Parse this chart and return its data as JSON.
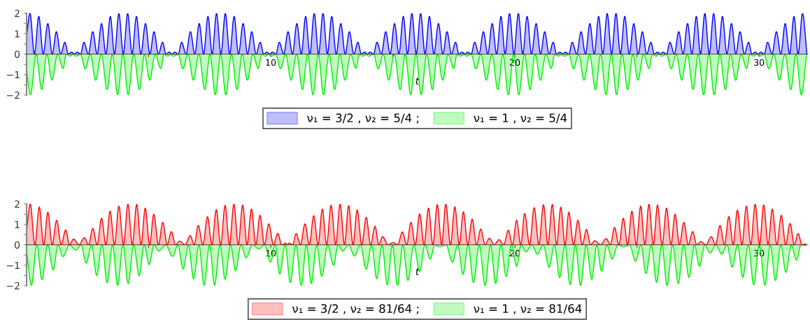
{
  "chart_data": [
    {
      "type": "area",
      "xlabel": "t",
      "xlim": [
        0,
        32
      ],
      "ylim": [
        -2,
        2
      ],
      "legend": "bottom",
      "xticks": [
        {
          "value": 5,
          "label": null
        },
        10,
        {
          "value": 15,
          "label": null
        },
        20,
        {
          "value": 25,
          "label": null
        },
        30
      ],
      "yticks": [
        -2,
        {
          "value": -1.5,
          "label": null
        },
        -1,
        {
          "value": -0.5,
          "label": null
        },
        0,
        {
          "value": 0.5,
          "label": null
        },
        1,
        {
          "value": 1.5,
          "label": null
        },
        2
      ],
      "series": [
        {
          "name": "ν₁ = 3/2 , ν₂ = 5/4 ;",
          "color": "#0000ff",
          "x": [
            0,
            0.14,
            0.32,
            0.5,
            0.68,
            0.87,
            1.05,
            1.22,
            1.4,
            1.57,
            1.71,
            1.84,
            1.96,
            2.07,
            2.21,
            2.35,
            2.53,
            2.71,
            2.89,
            3.07,
            3.25,
            3.43,
            3.6,
            3.78,
            3.96,
            4.14,
            4.32,
            4.5,
            4.68,
            4.87,
            5.05,
            5.22,
            5.4,
            5.57,
            5.71,
            5.84,
            5.96,
            6.07,
            6.21,
            6.35,
            6.53,
            6.71,
            6.89,
            7.07,
            7.25,
            7.43,
            7.6,
            7.78,
            7.96,
            8.14,
            8.32,
            8.5,
            8.68,
            8.87,
            9.05,
            9.22,
            9.4,
            9.57,
            9.71,
            9.84,
            9.96,
            10.07,
            10.21,
            10.35,
            10.53,
            10.71,
            10.89,
            11.07,
            11.25,
            11.43,
            11.6,
            11.78,
            11.96,
            12.14,
            12.32,
            12.5,
            12.68,
            12.87,
            13.05,
            13.22,
            13.4,
            13.57,
            13.71,
            13.84,
            13.96,
            14.07,
            14.21,
            14.35,
            14.53,
            14.71,
            14.89,
            15.07,
            15.25,
            15.43,
            15.6,
            15.78,
            15.96,
            16.14,
            16.32,
            16.5,
            16.68,
            16.87,
            17.05,
            17.22,
            17.4,
            17.57,
            17.71,
            17.84,
            17.96,
            18.07,
            18.21,
            18.35,
            18.53,
            18.71,
            18.89,
            19.07,
            19.25,
            19.43,
            19.6,
            19.78,
            19.96,
            20.14,
            20.32,
            20.5,
            20.68,
            20.87,
            21.05,
            21.22,
            21.4,
            21.57,
            21.71,
            21.84,
            21.96,
            22.07,
            22.21,
            22.35,
            22.53,
            22.71,
            22.89,
            23.07,
            23.25,
            23.43,
            23.6,
            23.78,
            23.96,
            24.14,
            24.32,
            24.5,
            24.68,
            24.87,
            25.05,
            25.22,
            25.4,
            25.57,
            25.71,
            25.84,
            25.96,
            26.07,
            26.21,
            26.35,
            26.53,
            26.71,
            26.89,
            27.07,
            27.25,
            27.43,
            27.6,
            27.78,
            27.96,
            28.14,
            28.32,
            28.5,
            28.68,
            28.87,
            29.05,
            29.22,
            29.4,
            29.57,
            29.71,
            29.84,
            29.96,
            30.07,
            30.21,
            30.35,
            30.53,
            30.71,
            30.89,
            31.07,
            31.25,
            31.43,
            31.6,
            31.78,
            31.96
          ],
          "values": [
            0.9,
            2,
            0,
            1.85,
            0,
            1.5,
            0,
            1.1,
            0,
            0.58,
            0,
            0.1,
            0,
            0.1,
            0,
            0.58,
            0,
            1.1,
            0,
            1.5,
            0,
            1.85,
            0,
            2,
            0,
            2,
            0,
            1.85,
            0,
            1.5,
            0,
            1.1,
            0,
            0.58,
            0,
            0.1,
            0,
            0.1,
            0,
            0.58,
            0,
            1.1,
            0,
            1.5,
            0,
            1.85,
            0,
            2,
            0,
            2,
            0,
            1.85,
            0,
            1.5,
            0,
            1.1,
            0,
            0.58,
            0,
            0.1,
            0,
            0.1,
            0,
            0.58,
            0,
            1.1,
            0,
            1.5,
            0,
            1.85,
            0,
            2,
            0,
            2,
            0,
            1.85,
            0,
            1.5,
            0,
            1.1,
            0,
            0.58,
            0,
            0.1,
            0,
            0.1,
            0,
            0.58,
            0,
            1.1,
            0,
            1.5,
            0,
            1.85,
            0,
            2,
            0,
            2,
            0,
            1.85,
            0,
            1.5,
            0,
            1.1,
            0,
            0.58,
            0,
            0.1,
            0,
            0.1,
            0,
            0.58,
            0,
            1.1,
            0,
            1.5,
            0,
            1.85,
            0,
            2,
            0,
            2,
            0,
            1.85,
            0,
            1.5,
            0,
            1.1,
            0,
            0.58,
            0,
            0.1,
            0,
            0.1,
            0,
            0.58,
            0,
            1.1,
            0,
            1.5,
            0,
            1.85,
            0,
            2,
            0,
            2,
            0,
            1.85,
            0,
            1.5,
            0,
            1.1,
            0,
            0.58,
            0,
            0.1,
            0,
            0.1,
            0,
            0.58,
            0,
            1.1,
            0,
            1.5,
            0,
            1.85,
            0,
            2,
            0,
            2,
            0,
            1.85,
            0,
            1.5,
            0,
            1.1,
            0,
            0.58,
            0,
            0.1,
            0,
            0.1,
            0,
            0.58,
            0,
            1.1,
            0,
            1.5,
            0,
            1.85,
            0,
            2,
            0
          ]
        },
        {
          "name": "ν₁ = 1 , ν₂ = 5/4",
          "color": "#00ee00",
          "x": [
            0,
            0.16,
            0.39,
            0.62,
            0.83,
            1.04,
            1.27,
            1.49,
            1.63,
            1.78,
            1.9,
            2.02,
            2.21,
            2.4,
            2.61,
            2.83,
            3.06,
            3.3,
            3.51,
            3.73,
            3.95,
            4.16,
            4.39,
            4.62,
            4.83,
            5.04,
            5.27,
            5.49,
            5.63,
            5.78,
            5.9,
            6.02,
            6.21,
            6.4,
            6.61,
            6.83,
            7.06,
            7.3,
            7.51,
            7.73,
            7.95,
            8.16,
            8.39,
            8.62,
            8.83,
            9.04,
            9.27,
            9.49,
            9.63,
            9.78,
            9.9,
            10.02,
            10.21,
            10.4,
            10.61,
            10.83,
            11.06,
            11.3,
            11.51,
            11.73,
            11.95,
            12.16,
            12.39,
            12.62,
            12.83,
            13.04,
            13.27,
            13.49,
            13.63,
            13.78,
            13.9,
            14.02,
            14.21,
            14.4,
            14.61,
            14.83,
            15.06,
            15.3,
            15.51,
            15.73,
            15.95,
            16.16,
            16.39,
            16.62,
            16.83,
            17.04,
            17.27,
            17.49,
            17.63,
            17.78,
            17.9,
            18.02,
            18.21,
            18.4,
            18.61,
            18.83,
            19.06,
            19.3,
            19.51,
            19.73,
            19.95,
            20.16,
            20.39,
            20.62,
            20.83,
            21.04,
            21.27,
            21.49,
            21.63,
            21.78,
            21.9,
            22.02,
            22.21,
            22.4,
            22.61,
            22.83,
            23.06,
            23.3,
            23.51,
            23.73,
            23.95,
            24.16,
            24.39,
            24.62,
            24.83,
            25.04,
            25.27,
            25.49,
            25.63,
            25.78,
            25.9,
            26.02,
            26.21,
            26.4,
            26.61,
            26.83,
            27.06,
            27.3,
            27.51,
            27.73,
            27.95,
            28.16,
            28.39,
            28.62,
            28.83,
            29.04,
            29.27,
            29.49,
            29.63,
            29.78,
            29.9,
            30.02,
            30.21,
            30.4,
            30.61,
            30.83,
            31.06,
            31.3,
            31.51,
            31.73,
            31.95
          ],
          "values": [
            -0.8,
            -2,
            0,
            -1.74,
            0,
            -1.28,
            0,
            -0.7,
            0,
            -0.1,
            0,
            -0.1,
            0,
            -0.72,
            0,
            -1.28,
            0,
            -1.74,
            0,
            -2,
            0,
            -2,
            0,
            -1.74,
            0,
            -1.28,
            0,
            -0.7,
            0,
            -0.1,
            0,
            -0.1,
            0,
            -0.72,
            0,
            -1.28,
            0,
            -1.74,
            0,
            -2,
            0,
            -2,
            0,
            -1.74,
            0,
            -1.28,
            0,
            -0.7,
            0,
            -0.1,
            0,
            -0.1,
            0,
            -0.72,
            0,
            -1.28,
            0,
            -1.74,
            0,
            -2,
            0,
            -2,
            0,
            -1.74,
            0,
            -1.28,
            0,
            -0.7,
            0,
            -0.1,
            0,
            -0.1,
            0,
            -0.72,
            0,
            -1.28,
            0,
            -1.74,
            0,
            -2,
            0,
            -2,
            0,
            -1.74,
            0,
            -1.28,
            0,
            -0.7,
            0,
            -0.1,
            0,
            -0.1,
            0,
            -0.72,
            0,
            -1.28,
            0,
            -1.74,
            0,
            -2,
            0,
            -2,
            0,
            -1.74,
            0,
            -1.28,
            0,
            -0.7,
            0,
            -0.1,
            0,
            -0.1,
            0,
            -0.72,
            0,
            -1.28,
            0,
            -1.74,
            0,
            -2,
            0,
            -2,
            0,
            -1.74,
            0,
            -1.28,
            0,
            -0.7,
            0,
            -0.1,
            0,
            -0.1,
            0,
            -0.72,
            0,
            -1.28,
            0,
            -1.74,
            0,
            -2,
            0,
            -2,
            0,
            -1.74,
            0,
            -1.28,
            0,
            -0.7,
            0,
            -0.1,
            0,
            -0.1,
            0,
            -0.72,
            0,
            -1.28,
            0,
            -1.74,
            0,
            -2,
            0
          ]
        }
      ]
    },
    {
      "type": "area",
      "xlabel": "t",
      "xlim": [
        0,
        32
      ],
      "ylim": [
        -2,
        2
      ],
      "legend": "bottom",
      "xticks": [
        {
          "value": 5,
          "label": null
        },
        10,
        {
          "value": 15,
          "label": null
        },
        20,
        {
          "value": 25,
          "label": null
        },
        30
      ],
      "yticks": [
        -2,
        {
          "value": -1.5,
          "label": null
        },
        -1,
        {
          "value": -0.5,
          "label": null
        },
        0,
        {
          "value": 0.5,
          "label": null
        },
        1,
        {
          "value": 1.5,
          "label": null
        },
        2
      ],
      "series": [
        {
          "name": "ν₁ = 3/2 , ν₂ = 81/64 ;",
          "color": "#ff0000",
          "x": [
            0,
            0.15,
            0.34,
            0.52,
            0.7,
            0.87,
            1.05,
            1.23,
            1.42,
            1.6,
            1.76,
            1.92,
            2.15,
            2.37,
            2.54,
            2.71,
            2.89,
            3.07,
            3.25,
            3.42,
            3.6,
            3.78,
            3.97,
            4.15,
            4.33,
            4.51,
            4.69,
            4.86,
            5.04,
            5.21,
            5.4,
            5.58,
            5.76,
            5.93,
            6.1,
            6.27,
            6.49,
            6.7,
            6.87,
            7.03,
            7.22,
            7.41,
            7.59,
            7.77,
            7.95,
            8.13,
            8.31,
            8.49,
            8.67,
            8.85,
            9.03,
            9.21,
            9.39,
            9.56,
            9.74,
            9.92,
            10.11,
            10.29,
            10.45,
            10.61,
            10.68,
            10.75,
            10.9,
            11.04,
            11.22,
            11.4,
            11.58,
            11.76,
            11.94,
            12.11,
            12.29,
            12.47,
            12.66,
            12.84,
            13.02,
            13.19,
            13.37,
            13.54,
            13.73,
            13.91,
            14.09,
            14.27,
            14.43,
            14.58,
            14.8,
            15.01,
            15.2,
            15.39,
            15.57,
            15.74,
            15.92,
            16.1,
            16.28,
            16.46,
            16.64,
            16.82,
            17.0,
            17.17,
            17.36,
            17.54,
            17.72,
            17.89,
            18.07,
            18.25,
            18.43,
            18.6,
            18.78,
            18.95,
            19.15,
            19.35,
            19.54,
            19.73,
            19.9,
            20.07,
            20.24,
            20.4,
            20.6,
            20.79,
            20.98,
            21.17,
            21.35,
            21.53,
            21.71,
            21.88,
            22.05,
            22.21,
            22.4,
            22.58,
            22.76,
            22.93,
            23.1,
            23.27,
            23.51,
            23.74,
            23.91,
            24.08,
            24.26,
            24.44,
            24.62,
            24.79,
            24.97,
            25.15,
            25.32,
            25.49,
            25.67,
            25.84,
            26.03,
            26.21,
            26.39,
            26.56,
            26.74,
            26.92,
            27.1,
            27.28,
            27.45,
            27.61,
            27.83,
            28.04,
            28.22,
            28.4,
            28.58,
            28.76,
            28.94,
            29.11,
            29.3,
            29.48,
            29.66,
            29.84,
            30.02,
            30.19,
            30.37,
            30.54,
            30.73,
            30.91,
            31.09,
            31.27,
            31.44,
            31.6,
            31.76,
            31.91
          ],
          "values": [
            0.7,
            2,
            0,
            1.85,
            0,
            1.6,
            0,
            1.2,
            0,
            0.73,
            0,
            0.28,
            0,
            0.35,
            0,
            0.8,
            0,
            1.3,
            0,
            1.65,
            0,
            1.9,
            0,
            2,
            0,
            1.98,
            0,
            1.8,
            0,
            1.5,
            0,
            1.1,
            0,
            0.65,
            0,
            0.18,
            0,
            0.45,
            0,
            0.95,
            0,
            1.38,
            0,
            1.72,
            0,
            1.93,
            0,
            2,
            0,
            1.95,
            0,
            1.75,
            0,
            1.45,
            0,
            1.03,
            0,
            0.56,
            0,
            0.08,
            0,
            0.08,
            0,
            0.55,
            0,
            1.03,
            0,
            1.43,
            0,
            1.75,
            0,
            1.94,
            0,
            2,
            0,
            1.92,
            0,
            1.71,
            0,
            1.35,
            0,
            0.91,
            0,
            0.4,
            0,
            0.11,
            0,
            0.63,
            0,
            1.1,
            0,
            1.52,
            0,
            1.8,
            0,
            1.97,
            0,
            2,
            0,
            1.86,
            0,
            1.62,
            0,
            1.26,
            0,
            0.77,
            0,
            0.32,
            0,
            0.25,
            0,
            0.71,
            0,
            1.2,
            0,
            1.54,
            0,
            1.82,
            0,
            1.97,
            0,
            1.98,
            0,
            1.85,
            0,
            1.6,
            0,
            1.2,
            0,
            0.75,
            0,
            0.2,
            0,
            0.3,
            0,
            0.85,
            0,
            1.3,
            0,
            1.65,
            0,
            1.9,
            0,
            2,
            0,
            1.95,
            0,
            1.8,
            0,
            1.5,
            0,
            1.1,
            0,
            0.65,
            0,
            0.15,
            0,
            0.4,
            0,
            0.95,
            0,
            1.38,
            0,
            1.7,
            0,
            1.9,
            0,
            2,
            0,
            1.95,
            0,
            1.75,
            0,
            1.45,
            0,
            1.05,
            0,
            0.55,
            0,
            0.05
          ]
        },
        {
          "name": "ν₁ = 1 , ν₂ = 81/64",
          "color": "#00ee00",
          "x": [
            0,
            0.2,
            0.42,
            0.63,
            0.86,
            1.09,
            1.29,
            1.49,
            1.75,
            2.01,
            2.23,
            2.44,
            2.66,
            2.87,
            3.09,
            3.3,
            3.52,
            3.73,
            3.95,
            4.16,
            4.39,
            4.61,
            4.82,
            5.02,
            5.22,
            5.41,
            5.7,
            5.98,
            6.2,
            6.41,
            6.63,
            6.84,
            7.06,
            7.27,
            7.49,
            7.7,
            7.92,
            8.13,
            8.35,
            8.56,
            8.78,
            8.99,
            9.25,
            9.51,
            9.75,
            9.99,
            10.18,
            10.37,
            10.59,
            10.8,
            11.03,
            11.25,
            11.46,
            11.66,
            11.88,
            12.09,
            12.33,
            12.57,
            12.76,
            12.95,
            13.19,
            13.43,
            13.67,
            13.91,
            14.13,
            14.34,
            14.56,
            14.77,
            14.98,
            15.19,
            15.41,
            15.62,
            15.86,
            16.1,
            16.32,
            16.53,
            16.72,
            16.91,
            17.18,
            17.44,
            17.66,
            17.87,
            18.09,
            18.3,
            18.54,
            18.78,
            19.0,
            19.21,
            19.43,
            19.64,
            19.86,
            20.07,
            20.26,
            20.45,
            20.69,
            20.92,
            21.16,
            21.4,
            21.62,
            21.83,
            22.05,
            22.26,
            22.48,
            22.69,
            22.92,
            23.15,
            23.35,
            23.55,
            23.77,
            23.98,
            24.22,
            24.46,
            24.7,
            24.94,
            25.16,
            25.37,
            25.59,
            25.8,
            26.02,
            26.23,
            26.46,
            26.69,
            26.91,
            27.13,
            27.35,
            27.56,
            27.78,
            27.99,
            28.23,
            28.47,
            28.69,
            28.9,
            29.12,
            29.33,
            29.56,
            29.78,
            30.01,
            30.24,
            30.46,
            30.67,
            30.89,
            31.1,
            31.32,
            31.53,
            31.72,
            31.91
          ],
          "values": [
            -0.3,
            -1.98,
            0,
            -1.71,
            0,
            -1.23,
            0,
            -0.58,
            0,
            -0.26,
            0,
            -0.9,
            0,
            -1.5,
            0,
            -1.86,
            0,
            -2,
            0,
            -1.9,
            0,
            -1.52,
            0,
            -0.97,
            0,
            -0.3,
            0,
            -0.57,
            0,
            -1.19,
            0,
            -1.67,
            0,
            -1.98,
            0,
            -1.98,
            0,
            -1.69,
            0,
            -1.26,
            0,
            -0.64,
            0,
            -0.2,
            0,
            -0.85,
            0,
            -1.43,
            0,
            -1.85,
            0,
            -2,
            0,
            -1.9,
            0,
            -1.55,
            0,
            -1,
            0,
            -0.3,
            0,
            -0.55,
            0,
            -1.2,
            0,
            -1.66,
            0,
            -1.96,
            0,
            -2,
            0,
            -1.75,
            0,
            -1.3,
            0,
            -0.7,
            0,
            -0.1,
            0,
            -0.85,
            0,
            -1.45,
            0,
            -1.85,
            0,
            -2,
            0,
            -1.9,
            0,
            -1.55,
            0,
            -1.05,
            0,
            -0.35,
            0,
            -0.45,
            0,
            -1.1,
            0,
            -1.6,
            0,
            -1.95,
            0,
            -2,
            0,
            -1.7,
            0,
            -1.3,
            0,
            -0.7,
            0,
            -0.1,
            0,
            -0.8,
            0,
            -1.4,
            0,
            -1.85,
            0,
            -2,
            0,
            -1.9,
            0,
            -1.6,
            0,
            -1.05,
            0,
            -0.4,
            0,
            -0.45,
            0,
            -1.1,
            0,
            -1.6,
            0,
            -1.95,
            0,
            -1.98,
            0,
            -1.75,
            0,
            -1.35,
            0,
            -0.75,
            0,
            -0.05
          ]
        }
      ]
    }
  ]
}
